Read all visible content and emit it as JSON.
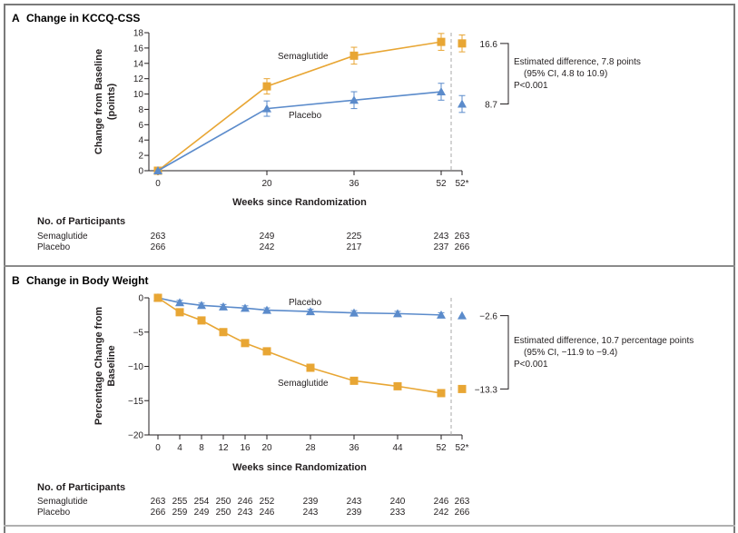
{
  "chart_data": [
    {
      "type": "line",
      "panel_letter": "A",
      "title": "Change in KCCQ-CSS",
      "ylabel": "Change from Baseline (points)",
      "xlabel": "Weeks since Randomization",
      "ylim": [
        0,
        18
      ],
      "yticks": [
        0,
        2,
        4,
        6,
        8,
        10,
        12,
        14,
        16,
        18
      ],
      "x": [
        0,
        20,
        36,
        52
      ],
      "xtick_labels": [
        "0",
        "20",
        "36",
        "52",
        "52*"
      ],
      "series": [
        {
          "name": "Semaglutide",
          "color": "#E8A634",
          "marker": "square",
          "values": [
            0,
            11.0,
            15.0,
            16.8
          ],
          "ci_low": [
            0,
            10.0,
            13.9,
            15.7
          ],
          "ci_high": [
            0,
            12.0,
            16.1,
            17.9
          ],
          "estimate_52star": 16.6,
          "estimate_ci": [
            15.5,
            17.7
          ],
          "estimate_label": "16.6"
        },
        {
          "name": "Placebo",
          "color": "#5B8BCB",
          "marker": "triangle",
          "values": [
            0,
            8.1,
            9.2,
            10.3
          ],
          "ci_low": [
            0,
            7.1,
            8.1,
            9.2
          ],
          "ci_high": [
            0,
            9.1,
            10.3,
            11.4
          ],
          "estimate_52star": 8.7,
          "estimate_ci": [
            7.6,
            9.8
          ],
          "estimate_label": "8.7"
        }
      ],
      "annotation": [
        "Estimated difference, 7.8 points",
        "(95% CI, 4.8 to 10.9)",
        "P<0.001"
      ],
      "risk_table": {
        "title": "No. of Participants",
        "columns": [
          "0",
          "20",
          "36",
          "52",
          "52*"
        ],
        "rows": [
          {
            "label": "Semaglutide",
            "values": [
              "263",
              "249",
              "225",
              "243",
              "263"
            ]
          },
          {
            "label": "Placebo",
            "values": [
              "266",
              "242",
              "217",
              "237",
              "266"
            ]
          }
        ]
      }
    },
    {
      "type": "line",
      "panel_letter": "B",
      "title": "Change in Body Weight",
      "ylabel": "Percentage Change from Baseline",
      "xlabel": "Weeks since Randomization",
      "ylim": [
        -20,
        0
      ],
      "yticks": [
        0,
        -5,
        -10,
        -15,
        -20
      ],
      "ytick_labels": [
        "0",
        "−5",
        "−10",
        "−15",
        "−20"
      ],
      "x": [
        0,
        4,
        8,
        12,
        16,
        20,
        28,
        36,
        44,
        52
      ],
      "xtick_labels": [
        "0",
        "4",
        "8",
        "12",
        "16",
        "20",
        "28",
        "36",
        "44",
        "52",
        "52*"
      ],
      "series": [
        {
          "name": "Placebo",
          "color": "#5B8BCB",
          "marker": "triangle",
          "values": [
            0,
            -0.7,
            -1.1,
            -1.3,
            -1.5,
            -1.8,
            -2.0,
            -2.2,
            -2.3,
            -2.5
          ],
          "estimate_52star": -2.6,
          "estimate_label": "−2.6"
        },
        {
          "name": "Semaglutide",
          "color": "#E8A634",
          "marker": "square",
          "values": [
            0,
            -2.1,
            -3.3,
            -5.0,
            -6.6,
            -7.8,
            -10.2,
            -12.1,
            -12.9,
            -13.9
          ],
          "estimate_52star": -13.3,
          "estimate_label": "−13.3"
        }
      ],
      "annotation": [
        "Estimated difference, 10.7 percentage points",
        "(95% CI, −11.9 to −9.4)",
        "P<0.001"
      ],
      "risk_table": {
        "title": "No. of Participants",
        "columns": [
          "0",
          "4",
          "8",
          "12",
          "16",
          "20",
          "28",
          "36",
          "44",
          "52",
          "52*"
        ],
        "rows": [
          {
            "label": "Semaglutide",
            "values": [
              "263",
              "255",
              "254",
              "250",
              "246",
              "252",
              "239",
              "243",
              "240",
              "246",
              "263"
            ]
          },
          {
            "label": "Placebo",
            "values": [
              "266",
              "259",
              "249",
              "250",
              "243",
              "246",
              "243",
              "239",
              "233",
              "242",
              "266"
            ]
          }
        ]
      }
    }
  ]
}
